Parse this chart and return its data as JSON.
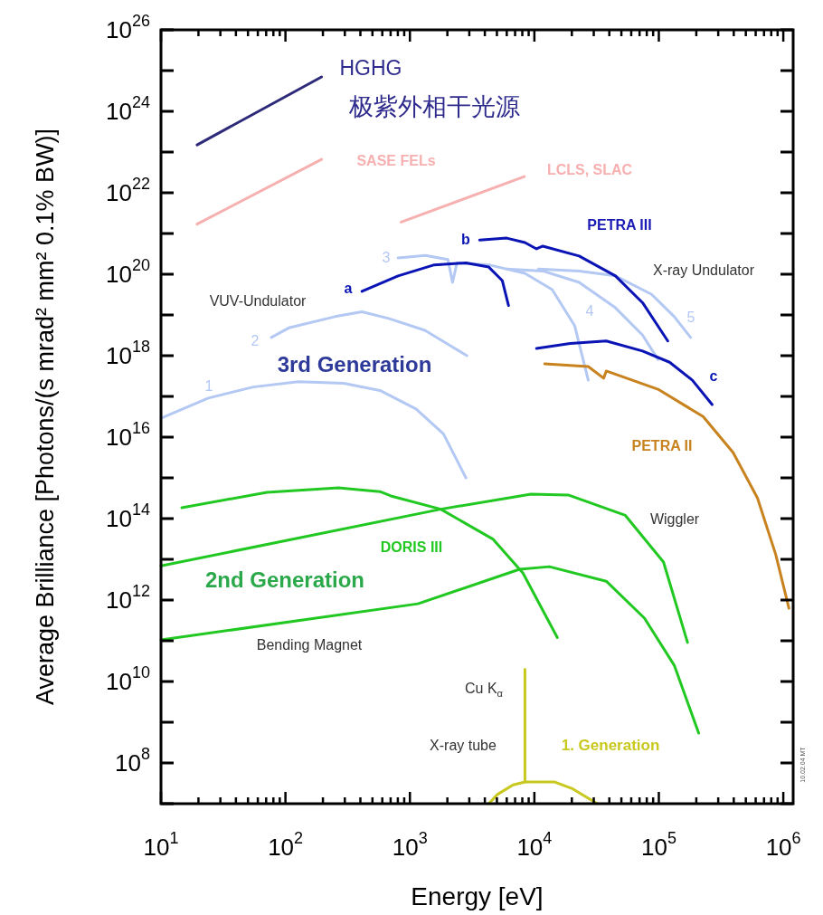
{
  "chart_data": {
    "type": "line",
    "log": "xy",
    "xlabel": "Energy  [eV]",
    "ylabel": "Average Brilliance  [Photons/(s mrad² mm² 0.1% BW)]",
    "xlim": [
      10,
      1200000
    ],
    "ylim": [
      10000000.0,
      1e+26
    ],
    "xticks": [
      {
        "value": 10,
        "label": "10$^{1}$"
      },
      {
        "value": 20,
        "label": null
      },
      {
        "value": 30,
        "label": null
      },
      {
        "value": 40,
        "label": null
      },
      {
        "value": 50,
        "label": null
      },
      {
        "value": 60,
        "label": null
      },
      {
        "value": 70,
        "label": null
      },
      {
        "value": 80,
        "label": null
      },
      {
        "value": 90,
        "label": null
      },
      {
        "value": 100,
        "label": "10$^{2}$"
      },
      {
        "value": 200,
        "label": null
      },
      {
        "value": 300,
        "label": null
      },
      {
        "value": 400,
        "label": null
      },
      {
        "value": 500,
        "label": null
      },
      {
        "value": 600,
        "label": null
      },
      {
        "value": 700,
        "label": null
      },
      {
        "value": 800,
        "label": null
      },
      {
        "value": 900,
        "label": null
      },
      {
        "value": 1000,
        "label": "10$^{3}$"
      },
      {
        "value": 2000,
        "label": null
      },
      {
        "value": 3000,
        "label": null
      },
      {
        "value": 4000,
        "label": null
      },
      {
        "value": 5000,
        "label": null
      },
      {
        "value": 6000,
        "label": null
      },
      {
        "value": 7000,
        "label": null
      },
      {
        "value": 8000,
        "label": null
      },
      {
        "value": 9000,
        "label": null
      },
      {
        "value": 10000,
        "label": "10$^{4}$"
      },
      {
        "value": 20000,
        "label": null
      },
      {
        "value": 30000,
        "label": null
      },
      {
        "value": 40000,
        "label": null
      },
      {
        "value": 50000,
        "label": null
      },
      {
        "value": 60000,
        "label": null
      },
      {
        "value": 70000,
        "label": null
      },
      {
        "value": 80000,
        "label": null
      },
      {
        "value": 90000,
        "label": null
      },
      {
        "value": 100000,
        "label": "10$^{5}$"
      },
      {
        "value": 200000,
        "label": null
      },
      {
        "value": 300000,
        "label": null
      },
      {
        "value": 400000,
        "label": null
      },
      {
        "value": 500000,
        "label": null
      },
      {
        "value": 600000,
        "label": null
      },
      {
        "value": 700000,
        "label": null
      },
      {
        "value": 800000,
        "label": null
      },
      {
        "value": 900000,
        "label": null
      },
      {
        "value": 1000000,
        "label": "10$^{6}$"
      }
    ],
    "yticks": [
      {
        "value": 10000000.0,
        "label": null
      },
      {
        "value": 100000000.0,
        "label": "10$^{8}$"
      },
      {
        "value": 1000000000.0,
        "label": null
      },
      {
        "value": 10000000000.0,
        "label": "10$^{10}$"
      },
      {
        "value": 100000000000.0,
        "label": null
      },
      {
        "value": 1000000000000.0,
        "label": "10$^{12}$"
      },
      {
        "value": 10000000000000.0,
        "label": null
      },
      {
        "value": 100000000000000.0,
        "label": "10$^{14}$"
      },
      {
        "value": 1000000000000000.0,
        "label": null
      },
      {
        "value": 1e+16,
        "label": "10$^{16}$"
      },
      {
        "value": 1e+17,
        "label": null
      },
      {
        "value": 1e+18,
        "label": "10$^{18}$"
      },
      {
        "value": 1e+19,
        "label": null
      },
      {
        "value": 1e+20,
        "label": "10$^{20}$"
      },
      {
        "value": 1e+21,
        "label": null
      },
      {
        "value": 1e+22,
        "label": "10$^{22}$"
      },
      {
        "value": 1e+23,
        "label": null
      },
      {
        "value": 1e+24,
        "label": "10$^{24}$"
      },
      {
        "value": 1e+25,
        "label": null
      },
      {
        "value": 1e+26,
        "label": "10$^{26}$"
      }
    ],
    "series": [
      {
        "name": "HGHG",
        "color": "#2d2a7a",
        "x": [
          19.5,
          195
        ],
        "values": [
          1.5e+23,
          7e+24
        ]
      },
      {
        "name": "SASE FELs",
        "color": "#f7b0b0",
        "x": [
          19.5,
          195
        ],
        "values": [
          1.7e+21,
          6.6e+22
        ]
      },
      {
        "name": "LCLS, SLAC",
        "color": "#f7b0b0",
        "x": [
          850,
          8300
        ],
        "values": [
          1.9e+21,
          2.5e+22
        ]
      },
      {
        "name": "1",
        "color": "#b4c8f4",
        "x": [
          10,
          24,
          55,
          127,
          294,
          575,
          1120,
          1860,
          2820
        ],
        "values": [
          2.9e+16,
          9.1e+16,
          1.7e+17,
          2.3e+17,
          2.1e+17,
          1.4e+17,
          4.9e+16,
          1.2e+16,
          1000000000000000.0
        ]
      },
      {
        "name": "2",
        "color": "#b4c8f4",
        "x": [
          77,
          108,
          250,
          412,
          676,
          1320,
          2870
        ],
        "values": [
          2.8e+18,
          4.9e+18,
          9.1e+18,
          1.2e+19,
          8.2e+18,
          4.2e+18,
          1e+18
        ]
      },
      {
        "name": "3",
        "color": "#b4c8f4",
        "x": [
          803,
          1330,
          2020,
          2200,
          2390,
          4300,
          8400,
          13900,
          21100,
          27100
        ],
        "values": [
          2.5e+20,
          2.9e+20,
          2.3e+20,
          6.3e+19,
          1.9e+20,
          1.7e+20,
          1.05e+20,
          4.2e+19,
          5.4e+18,
          2.5e+17
        ]
      },
      {
        "name": "4",
        "color": "#b4c8f4",
        "x": [
          6000,
          11700,
          22900,
          44800,
          74000,
          98400
        ],
        "values": [
          1.35e+20,
          1.2e+20,
          6.3e+19,
          1.5e+19,
          3.2e+18,
          8.1e+17
        ]
      },
      {
        "name": "5",
        "color": "#b4c8f4",
        "x": [
          10800,
          22900,
          44800,
          87500,
          133000,
          180000
        ],
        "values": [
          1.35e+20,
          1.2e+20,
          9.1e+19,
          3.2e+19,
          9.1e+18,
          2.8e+18
        ]
      },
      {
        "name": "a",
        "color": "#0a14b4",
        "x": [
          412,
          803,
          1570,
          2820,
          4300,
          5520,
          6200
        ],
        "values": [
          3.8e+19,
          9.1e+19,
          1.7e+20,
          1.9e+20,
          1.5e+20,
          7e+19,
          1.7e+19
        ]
      },
      {
        "name": "b",
        "color": "#0a14b4",
        "x": [
          3630,
          6000,
          8400,
          10400,
          11700,
          22900,
          44800,
          74000,
          118000
        ],
        "values": [
          6.9e+20,
          7.7e+20,
          6e+20,
          4.2e+20,
          4.9e+20,
          2.8e+20,
          9.1e+19,
          2e+19,
          2.3e+18
        ]
      },
      {
        "name": "c",
        "color": "#0a14b4",
        "x": [
          10400,
          19400,
          37800,
          74000,
          122000,
          186000,
          268000
        ],
        "values": [
          1.5e+18,
          2e+18,
          2.3e+18,
          1.3e+18,
          6.9e+17,
          2.5e+17,
          6.3e+16
        ]
      },
      {
        "name": "PETRA II",
        "color": "#c8821e",
        "x": [
          12100,
          27100,
          36000,
          37800,
          98400,
          227000,
          395000,
          620000,
          870000,
          1110000
        ],
        "values": [
          6.3e+17,
          5.4e+17,
          2.8e+17,
          4.2e+17,
          1.5e+17,
          3.2e+16,
          4200000000000000.0,
          320000000000000.0,
          13000000000000.0,
          630000000000.0
        ]
      },
      {
        "color": "#22c822",
        "x": [
          14.7,
          71,
          266,
          575,
          703,
          1770,
          4670,
          8100,
          15300
        ],
        "values": [
          185000000000000.0,
          440000000000000.0,
          570000000000000.0,
          460000000000000.0,
          360000000000000.0,
          170000000000000.0,
          31000000000000.0,
          4600000000000.0,
          120000000000.0
        ]
      },
      {
        "color": "#22c822",
        "x": [
          10,
          1770,
          9400,
          18700,
          53800,
          109000,
          170000
        ],
        "values": [
          6900000000000.0,
          170000000000000.0,
          400000000000000.0,
          380000000000000.0,
          120000000000000.0,
          8600000000000.0,
          91000000000.0
        ]
      },
      {
        "color": "#22c822",
        "x": [
          10,
          1160,
          7600,
          13200,
          37800,
          76600,
          133000,
          209000
        ],
        "values": [
          105000000000.0,
          810000000000.0,
          5700000000000.0,
          6600000000000.0,
          2900000000000.0,
          360000000000.0,
          25000000000.0,
          540000000.0
        ]
      },
      {
        "color": "#c8c81e",
        "x": [
          8400,
          8400
        ],
        "values": [
          34000000.0,
          20000000000.0
        ]
      },
      {
        "color": "#c8c81e",
        "x": [
          4300,
          5070,
          6750,
          8400,
          14600,
          20400,
          32000
        ],
        "values": [
          10000000.0,
          17000000.0,
          29000000.0,
          34000000.0,
          34000000.0,
          23000000.0,
          10000000.0
        ]
      }
    ],
    "annotations": [
      "极紫外相干光源",
      "PETRA III",
      "X-ray Undulator",
      "VUV-Undulator",
      "3rd Generation",
      "Wiggler",
      "DORIS III",
      "2nd Generation",
      "Bending Magnet",
      "Cu K$_{α}$",
      "X-ray tube",
      "1. Generation",
      "10.02.04 MT"
    ]
  }
}
